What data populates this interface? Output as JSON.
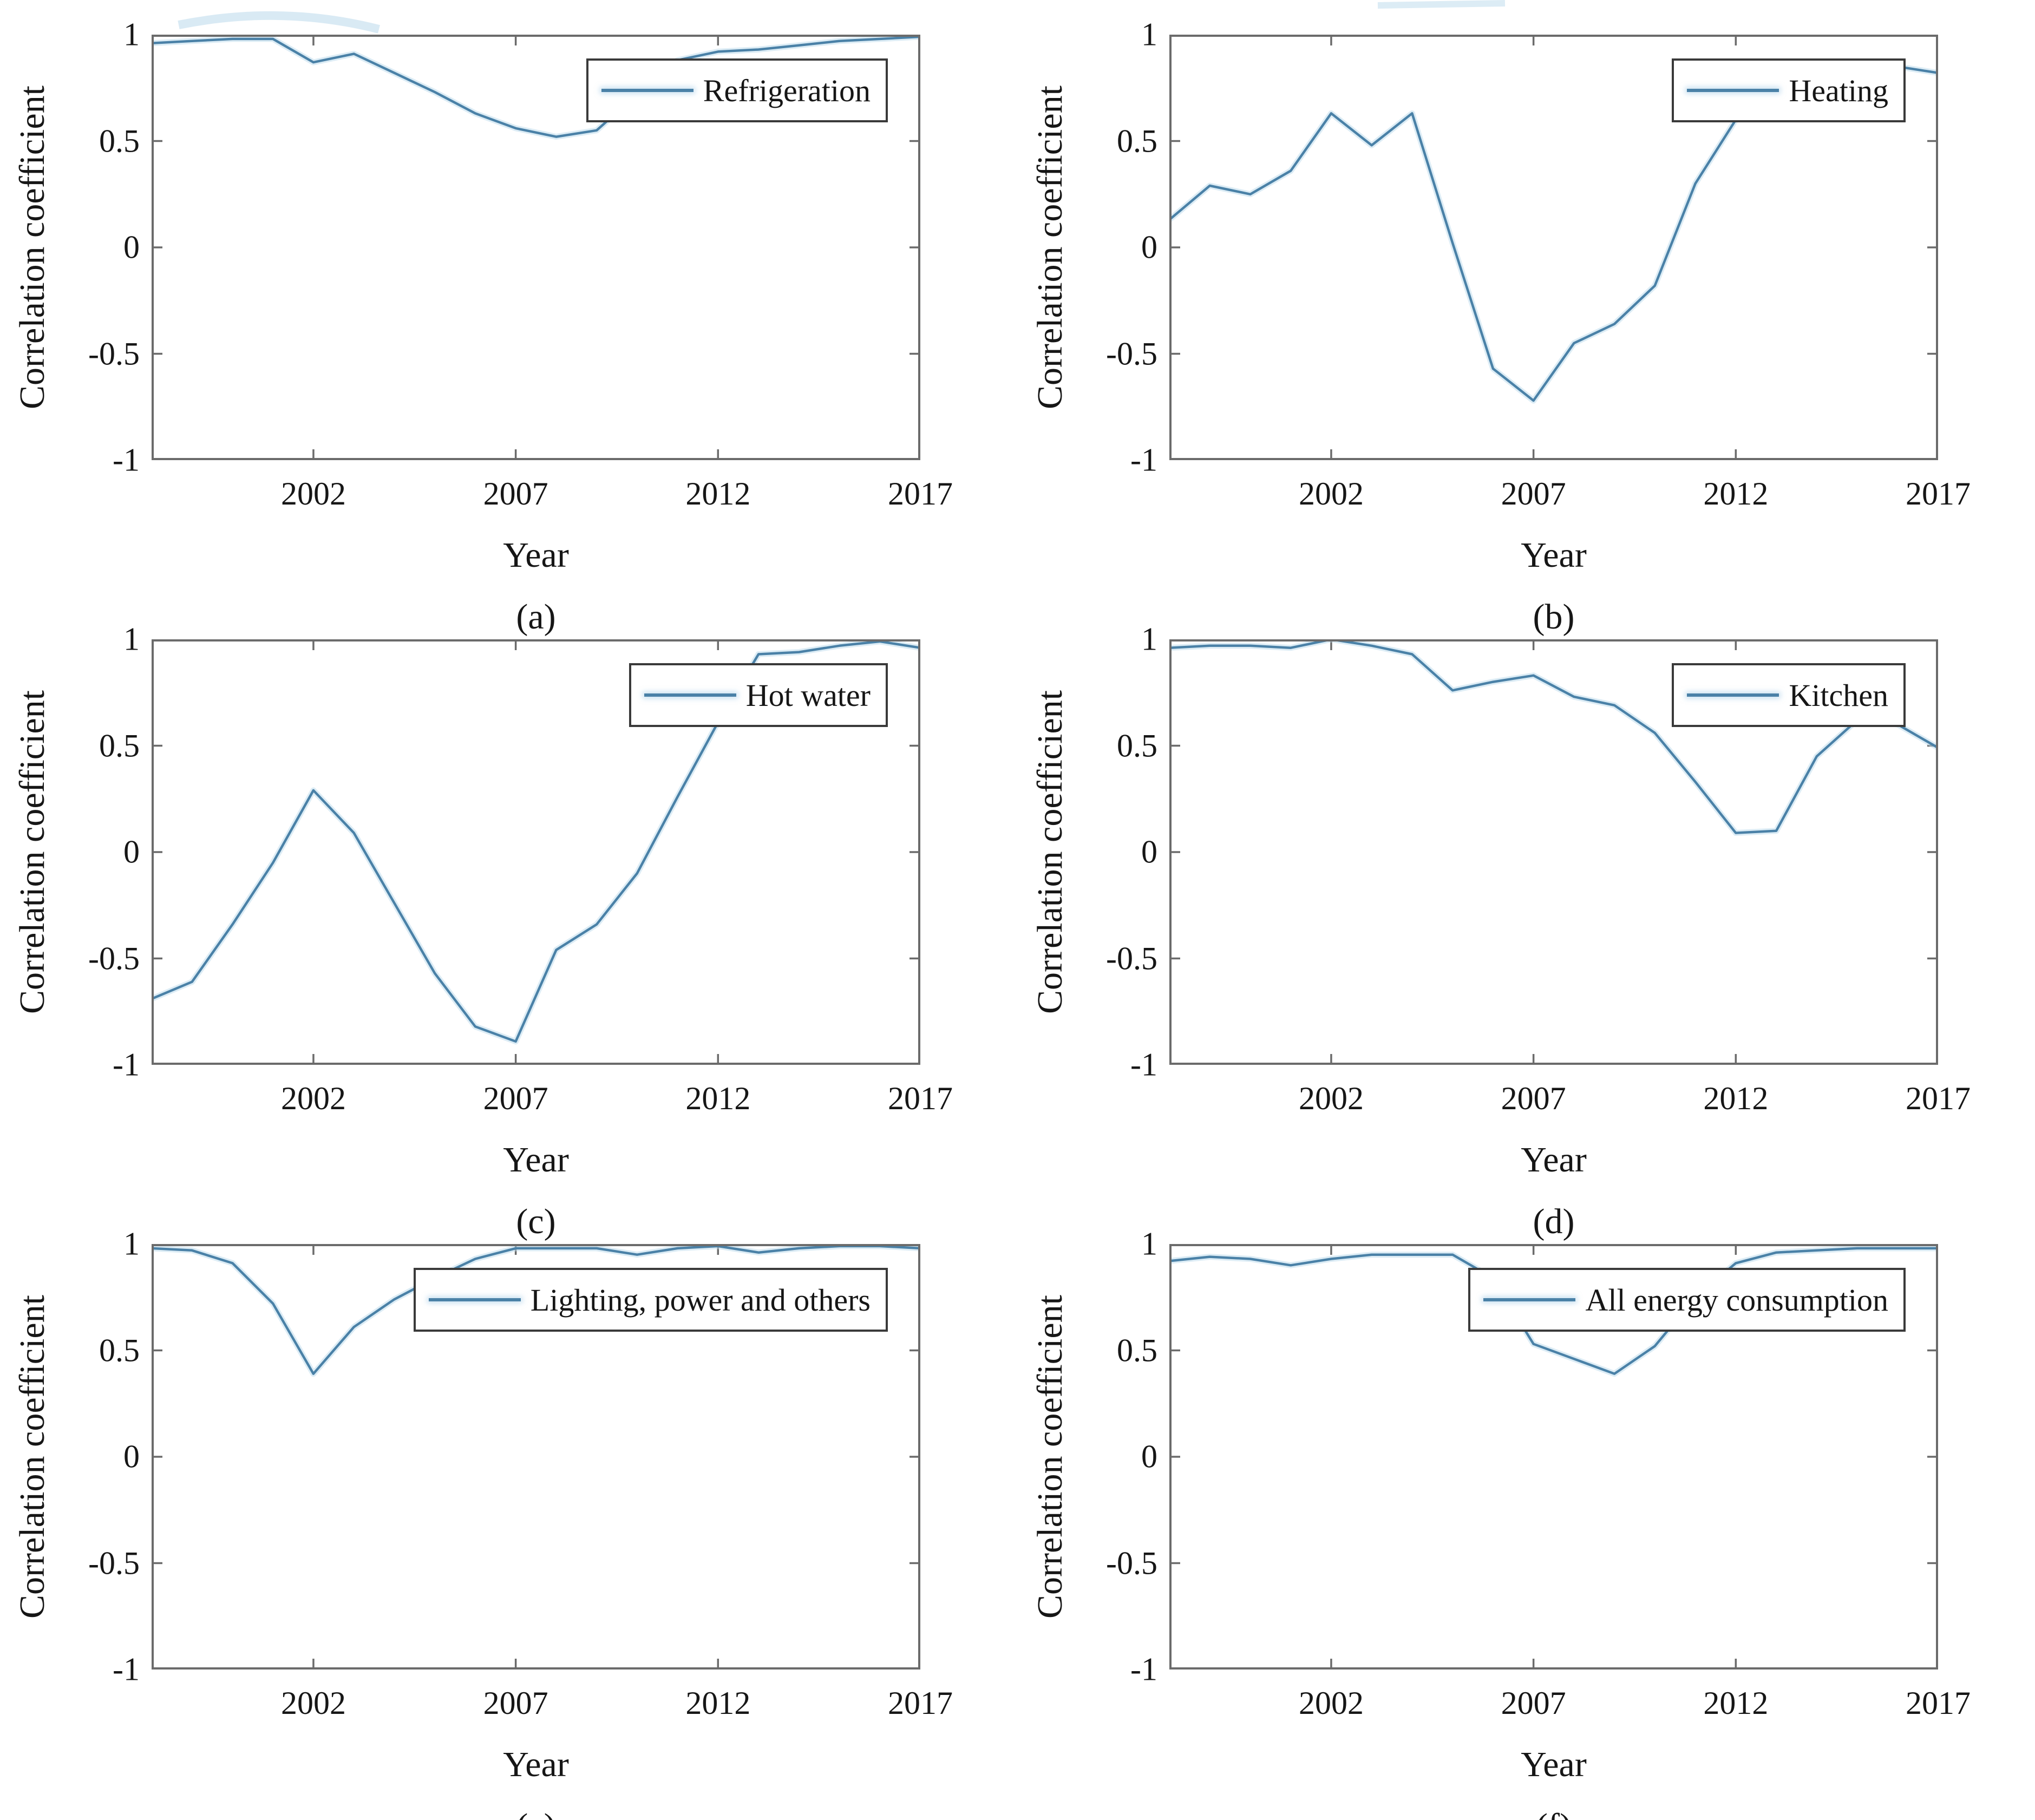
{
  "figure": {
    "ylabel": "Correlation coefficient",
    "xlabel": "Year",
    "x_tick_labels": [
      "2002",
      "2007",
      "2012",
      "2017"
    ],
    "y_tick_labels": [
      "1",
      "0.5",
      "0",
      "-0.5",
      "-1"
    ],
    "line_color": "#4a81a7",
    "halo_color": "#b9d9eb",
    "axis_color": "#6b6b6b",
    "text_color": "#161616",
    "legend_border_color": "#3a3a3a",
    "background_color": "#ffffff"
  },
  "chart_data": [
    {
      "type": "line",
      "caption": "(a)",
      "legend": "Refrigeration",
      "title": "",
      "xlabel": "Year",
      "ylabel": "Correlation coefficient",
      "xlim": [
        1998,
        2017
      ],
      "ylim": [
        -1,
        1
      ],
      "x_ticks": [
        2002,
        2007,
        2012,
        2017
      ],
      "y_ticks": [
        1,
        0.5,
        0,
        -0.5,
        -1
      ],
      "grid": false,
      "legend_position": "top-right",
      "x": [
        1998,
        1999,
        2000,
        2001,
        2002,
        2003,
        2004,
        2005,
        2006,
        2007,
        2008,
        2009,
        2010,
        2011,
        2012,
        2013,
        2014,
        2015,
        2016,
        2017
      ],
      "values": [
        0.96,
        0.97,
        0.98,
        0.98,
        0.87,
        0.91,
        0.82,
        0.73,
        0.63,
        0.56,
        0.52,
        0.55,
        0.72,
        0.88,
        0.92,
        0.93,
        0.95,
        0.97,
        0.98,
        0.99
      ]
    },
    {
      "type": "line",
      "caption": "(b)",
      "legend": "Heating",
      "title": "",
      "xlabel": "Year",
      "ylabel": "Correlation coefficient",
      "xlim": [
        1998,
        2017
      ],
      "ylim": [
        -1,
        1
      ],
      "x_ticks": [
        2002,
        2007,
        2012,
        2017
      ],
      "y_ticks": [
        1,
        0.5,
        0,
        -0.5,
        -1
      ],
      "grid": false,
      "legend_position": "top-right",
      "x": [
        1998,
        1999,
        2000,
        2001,
        2002,
        2003,
        2004,
        2005,
        2006,
        2007,
        2008,
        2009,
        2010,
        2011,
        2012,
        2013,
        2014,
        2015,
        2016,
        2017
      ],
      "values": [
        0.13,
        0.29,
        0.25,
        0.36,
        0.63,
        0.48,
        0.63,
        0.02,
        -0.57,
        -0.72,
        -0.45,
        -0.36,
        -0.18,
        0.3,
        0.6,
        0.78,
        0.86,
        0.87,
        0.85,
        0.82
      ]
    },
    {
      "type": "line",
      "caption": "(c)",
      "legend": "Hot water",
      "title": "",
      "xlabel": "Year",
      "ylabel": "Correlation coefficient",
      "xlim": [
        1998,
        2017
      ],
      "ylim": [
        -1,
        1
      ],
      "x_ticks": [
        2002,
        2007,
        2012,
        2017
      ],
      "y_ticks": [
        1,
        0.5,
        0,
        -0.5,
        -1
      ],
      "grid": false,
      "legend_position": "top-right",
      "x": [
        1998,
        1999,
        2000,
        2001,
        2002,
        2003,
        2004,
        2005,
        2006,
        2007,
        2008,
        2009,
        2010,
        2011,
        2012,
        2013,
        2014,
        2015,
        2016,
        2017
      ],
      "values": [
        -0.69,
        -0.61,
        -0.34,
        -0.05,
        0.29,
        0.09,
        -0.24,
        -0.57,
        -0.82,
        -0.89,
        -0.46,
        -0.34,
        -0.1,
        0.26,
        0.61,
        0.93,
        0.94,
        0.97,
        0.99,
        0.96
      ]
    },
    {
      "type": "line",
      "caption": "(d)",
      "legend": "Kitchen",
      "title": "",
      "xlabel": "Year",
      "ylabel": "Correlation coefficient",
      "xlim": [
        1998,
        2017
      ],
      "ylim": [
        -1,
        1
      ],
      "x_ticks": [
        2002,
        2007,
        2012,
        2017
      ],
      "y_ticks": [
        1,
        0.5,
        0,
        -0.5,
        -1
      ],
      "grid": false,
      "legend_position": "top-right",
      "x": [
        1998,
        1999,
        2000,
        2001,
        2002,
        2003,
        2004,
        2005,
        2006,
        2007,
        2008,
        2009,
        2010,
        2011,
        2012,
        2013,
        2014,
        2015,
        2016,
        2017
      ],
      "values": [
        0.96,
        0.97,
        0.97,
        0.96,
        1.0,
        0.97,
        0.93,
        0.76,
        0.8,
        0.83,
        0.73,
        0.69,
        0.56,
        0.33,
        0.09,
        0.1,
        0.45,
        0.62,
        0.6,
        0.49
      ]
    },
    {
      "type": "line",
      "caption": "(e)",
      "legend": "Lighting, power and others",
      "title": "",
      "xlabel": "Year",
      "ylabel": "Correlation coefficient",
      "xlim": [
        1998,
        2017
      ],
      "ylim": [
        -1,
        1
      ],
      "x_ticks": [
        2002,
        2007,
        2012,
        2017
      ],
      "y_ticks": [
        1,
        0.5,
        0,
        -0.5,
        -1
      ],
      "grid": false,
      "legend_position": "top-right",
      "x": [
        1998,
        1999,
        2000,
        2001,
        2002,
        2003,
        2004,
        2005,
        2006,
        2007,
        2008,
        2009,
        2010,
        2011,
        2012,
        2013,
        2014,
        2015,
        2016,
        2017
      ],
      "values": [
        0.98,
        0.97,
        0.91,
        0.72,
        0.39,
        0.61,
        0.74,
        0.84,
        0.93,
        0.98,
        0.98,
        0.98,
        0.95,
        0.98,
        0.99,
        0.96,
        0.98,
        0.99,
        0.99,
        0.98
      ]
    },
    {
      "type": "line",
      "caption": "(f)",
      "legend": "All energy consumption",
      "title": "",
      "xlabel": "Year",
      "ylabel": "Correlation coefficient",
      "xlim": [
        1998,
        2017
      ],
      "ylim": [
        -1,
        1
      ],
      "x_ticks": [
        2002,
        2007,
        2012,
        2017
      ],
      "y_ticks": [
        1,
        0.5,
        0,
        -0.5,
        -1
      ],
      "grid": false,
      "legend_position": "top-right",
      "x": [
        1998,
        1999,
        2000,
        2001,
        2002,
        2003,
        2004,
        2005,
        2006,
        2007,
        2008,
        2009,
        2010,
        2011,
        2012,
        2013,
        2014,
        2015,
        2016,
        2017
      ],
      "values": [
        0.92,
        0.94,
        0.93,
        0.9,
        0.93,
        0.95,
        0.95,
        0.95,
        0.84,
        0.53,
        0.46,
        0.39,
        0.52,
        0.75,
        0.91,
        0.96,
        0.97,
        0.98,
        0.98,
        0.98
      ]
    }
  ]
}
